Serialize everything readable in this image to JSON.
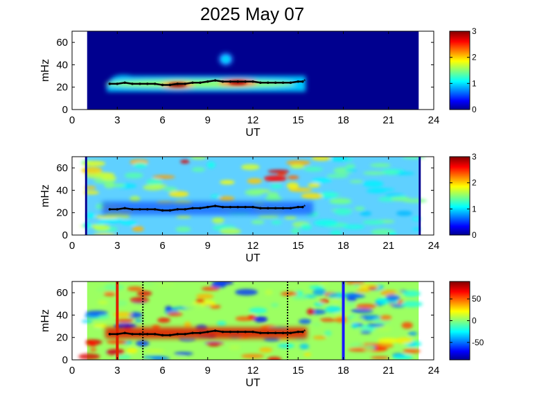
{
  "title": "2025 May 07",
  "chart_data": [
    {
      "type": "heatmap",
      "xlabel": "UT",
      "ylabel": "mHz",
      "xlim": [
        0,
        24
      ],
      "ylim": [
        0,
        70
      ],
      "xticks": [
        "0",
        "3",
        "6",
        "9",
        "12",
        "15",
        "18",
        "21",
        "24"
      ],
      "yticks": [
        "0",
        "20",
        "40",
        "60"
      ],
      "data_extent_ut": [
        1.0,
        23.0
      ],
      "colorbar": {
        "range": [
          0,
          3
        ],
        "ticks": [
          "0",
          "1",
          "2",
          "3"
        ]
      },
      "ridge": {
        "x": [
          2.5,
          3,
          3.5,
          4,
          4.5,
          5,
          5.5,
          6,
          6.5,
          7,
          7.5,
          8,
          8.5,
          9,
          9.5,
          10,
          10.5,
          11,
          11.5,
          12,
          12.5,
          13,
          13.5,
          14,
          14.5,
          15,
          15.3
        ],
        "y": [
          23,
          23,
          24,
          23,
          23,
          23,
          23,
          22,
          22,
          23,
          23,
          24,
          24,
          25,
          26,
          25,
          25,
          25,
          25,
          25,
          24,
          24,
          24,
          24,
          24,
          25,
          25
        ]
      },
      "hotspots": [
        {
          "ut": 7.0,
          "mhz": 22,
          "value": 3.0
        },
        {
          "ut": 11.0,
          "mhz": 24,
          "value": 2.9
        },
        {
          "ut": 10.2,
          "mhz": 45,
          "value": 1.0
        }
      ]
    },
    {
      "type": "heatmap",
      "xlabel": "UT",
      "ylabel": "mHz",
      "xlim": [
        0,
        24
      ],
      "ylim": [
        0,
        70
      ],
      "xticks": [
        "0",
        "3",
        "6",
        "9",
        "12",
        "15",
        "18",
        "21",
        "24"
      ],
      "yticks": [
        "0",
        "20",
        "40",
        "60"
      ],
      "data_extent_ut": [
        1.0,
        23.0
      ],
      "colorbar": {
        "range": [
          0,
          3
        ],
        "ticks": [
          "0",
          "1",
          "2",
          "3"
        ]
      },
      "ridge": {
        "x": [
          2.5,
          3,
          3.5,
          4,
          4.5,
          5,
          5.5,
          6,
          6.5,
          7,
          7.5,
          8,
          8.5,
          9,
          9.5,
          10,
          10.5,
          11,
          11.5,
          12,
          12.5,
          13,
          13.5,
          14,
          14.5,
          15,
          15.3
        ],
        "y": [
          23,
          23,
          24,
          23,
          23,
          23,
          23,
          22,
          22,
          23,
          23,
          24,
          24,
          25,
          26,
          25,
          25,
          25,
          25,
          25,
          24,
          24,
          24,
          24,
          24,
          25,
          25
        ]
      }
    },
    {
      "type": "heatmap",
      "xlabel": "UT",
      "ylabel": "mHz",
      "xlim": [
        0,
        24
      ],
      "ylim": [
        0,
        70
      ],
      "xticks": [
        "0",
        "3",
        "6",
        "9",
        "12",
        "15",
        "18",
        "21",
        "24"
      ],
      "yticks": [
        "0",
        "20",
        "40",
        "60"
      ],
      "data_extent_ut": [
        1.0,
        23.0
      ],
      "colorbar": {
        "range": [
          -90,
          90
        ],
        "ticks": [
          "50",
          "0",
          "-50"
        ]
      },
      "ridge": {
        "x": [
          2.5,
          3,
          3.5,
          4,
          4.5,
          5,
          5.5,
          6,
          6.5,
          7,
          7.5,
          8,
          8.5,
          9,
          9.5,
          10,
          10.5,
          11,
          11.5,
          12,
          12.5,
          13,
          13.5,
          14,
          14.5,
          15,
          15.3
        ],
        "y": [
          23,
          23,
          24,
          23,
          23,
          23,
          23,
          22,
          22,
          23,
          23,
          24,
          24,
          25,
          26,
          25,
          25,
          25,
          25,
          25,
          24,
          24,
          24,
          24,
          24,
          25,
          25
        ]
      },
      "vlines": [
        {
          "ut": 3.0,
          "style": "solid",
          "color": "#dd2200"
        },
        {
          "ut": 4.7,
          "style": "dotted",
          "color": "#000000"
        },
        {
          "ut": 14.3,
          "style": "dotted",
          "color": "#000000"
        },
        {
          "ut": 18.0,
          "style": "solid",
          "color": "#1a1aff"
        }
      ]
    }
  ]
}
